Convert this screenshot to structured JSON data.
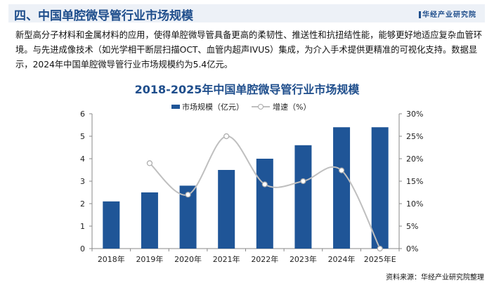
{
  "header": {
    "title": "四、中国单腔微导管行业市场规模",
    "brand": "华经产业研究院"
  },
  "paragraph": "新型高分子材料和金属材料的应用，使得单腔微导管具备更高的柔韧性、推送性和抗扭结性能，能够更好地适应复杂血管环境。与先进成像技术（如光学相干断层扫描OCT、血管内超声IVUS）集成，为介入手术提供更精准的可视化支持。数据显示，2024年中国单腔微导管行业市场规模约为5.4亿元。",
  "source": "资料来源：华经产业研究院整理",
  "chart_data": {
    "type": "bar+line",
    "title": "2018-2025年中国单腔微导管行业市场规模",
    "categories": [
      "2018年",
      "2019年",
      "2020年",
      "2021年",
      "2022年",
      "2023年",
      "2024年",
      "2025年E"
    ],
    "series": [
      {
        "name": "市场规模（亿元）",
        "type": "bar",
        "axis": "left",
        "color": "#1f5597",
        "values": [
          2.1,
          2.5,
          2.8,
          3.5,
          4.0,
          4.6,
          5.4,
          5.4
        ]
      },
      {
        "name": "增速（%）",
        "type": "line",
        "axis": "right",
        "color": "#bfbfbf",
        "values": [
          null,
          19.0,
          12.0,
          25.0,
          14.3,
          15.0,
          17.4,
          0
        ]
      }
    ],
    "ylim_left": [
      0,
      6
    ],
    "yticks_left": [
      "0",
      "1",
      "2",
      "3",
      "4",
      "5",
      "6"
    ],
    "ylim_right": [
      0,
      30
    ],
    "yticks_right": [
      "0%",
      "5%",
      "10%",
      "15%",
      "20%",
      "25%",
      "30%"
    ],
    "legend": "top",
    "grid": false
  }
}
